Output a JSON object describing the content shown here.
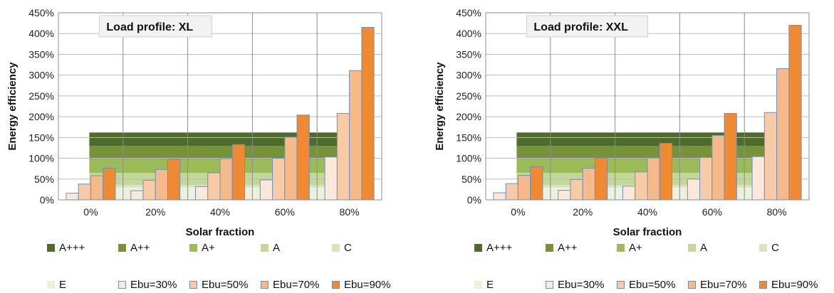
{
  "chart_data": [
    {
      "type": "bar",
      "title": "Load profile: XL",
      "xlabel": "Solar fraction",
      "ylabel": "Energy efficiency",
      "categories": [
        "0%",
        "20%",
        "40%",
        "60%",
        "80%"
      ],
      "ylim": [
        0,
        450
      ],
      "yticks": [
        "0%",
        "50%",
        "100%",
        "150%",
        "200%",
        "250%",
        "300%",
        "350%",
        "400%",
        "450%"
      ],
      "grid": true,
      "legend_position": "bottom",
      "series": [
        {
          "name": "Ebu=30%",
          "values": [
            16,
            22,
            32,
            48,
            103
          ],
          "color": "#fbe8d8"
        },
        {
          "name": "Ebu=50%",
          "values": [
            38,
            47,
            65,
            100,
            208
          ],
          "color": "#f8cba6"
        },
        {
          "name": "Ebu=70%",
          "values": [
            58,
            73,
            99,
            151,
            311
          ],
          "color": "#f6b98a"
        },
        {
          "name": "Ebu=90%",
          "values": [
            76,
            98,
            133,
            204,
            415
          ],
          "color": "#f08a32"
        }
      ],
      "bands": [
        {
          "name": "A+++",
          "from": 130,
          "to": 162,
          "color": "#4e6b2b"
        },
        {
          "name": "A++",
          "from": 98,
          "to": 130,
          "color": "#76933c"
        },
        {
          "name": "A+",
          "from": 65,
          "to": 98,
          "color": "#9bbb59"
        },
        {
          "name": "A",
          "from": 36,
          "to": 65,
          "color": "#c4d79b"
        },
        {
          "name": "C",
          "from": 30,
          "to": 36,
          "color": "#d8e4bc"
        },
        {
          "name": "E",
          "from": 0,
          "to": 30,
          "color": "#ebf1de"
        }
      ]
    },
    {
      "type": "bar",
      "title": "Load profile: XXL",
      "xlabel": "Solar fraction",
      "ylabel": "Energy efficiency",
      "categories": [
        "0%",
        "20%",
        "40%",
        "60%",
        "80%"
      ],
      "ylim": [
        0,
        450
      ],
      "yticks": [
        "0%",
        "50%",
        "100%",
        "150%",
        "200%",
        "250%",
        "300%",
        "350%",
        "400%",
        "450%"
      ],
      "grid": true,
      "legend_position": "bottom",
      "series": [
        {
          "name": "Ebu=30%",
          "values": [
            17,
            23,
            33,
            50,
            104
          ],
          "color": "#fbe8d8"
        },
        {
          "name": "Ebu=50%",
          "values": [
            39,
            49,
            67,
            102,
            210
          ],
          "color": "#f8cba6"
        },
        {
          "name": "Ebu=70%",
          "values": [
            59,
            76,
            101,
            155,
            316
          ],
          "color": "#f6b98a"
        },
        {
          "name": "Ebu=90%",
          "values": [
            80,
            101,
            136,
            208,
            420
          ],
          "color": "#f08a32"
        }
      ],
      "bands": [
        {
          "name": "A+++",
          "from": 130,
          "to": 162,
          "color": "#4e6b2b"
        },
        {
          "name": "A++",
          "from": 98,
          "to": 130,
          "color": "#76933c"
        },
        {
          "name": "A+",
          "from": 65,
          "to": 98,
          "color": "#9bbb59"
        },
        {
          "name": "A",
          "from": 36,
          "to": 65,
          "color": "#c4d79b"
        },
        {
          "name": "C",
          "from": 30,
          "to": 36,
          "color": "#d8e4bc"
        },
        {
          "name": "E",
          "from": 0,
          "to": 30,
          "color": "#ebf1de"
        }
      ]
    }
  ]
}
